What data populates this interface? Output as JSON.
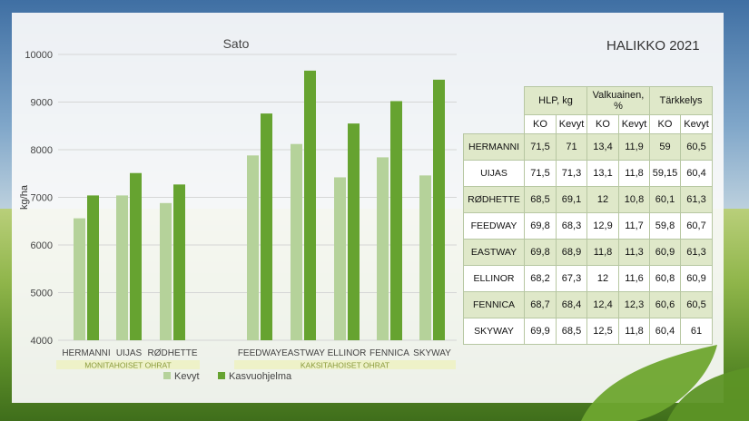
{
  "heading": "HALIKKO 2021",
  "chart_data": {
    "type": "bar",
    "title": "Sato",
    "ylabel": "kg/ha",
    "xlabel": "",
    "ylim": [
      4000,
      10000
    ],
    "yticks": [
      4000,
      5000,
      6000,
      7000,
      8000,
      9000,
      10000
    ],
    "grid": true,
    "legend_position": "bottom",
    "groups": [
      {
        "label": "MONITAHOISET OHRAT",
        "categories": [
          "HERMANNI",
          "UljAS",
          "RØDHETTE"
        ]
      },
      {
        "label": "KAKSITAHOISET OHRAT",
        "categories": [
          "FEEDWAY",
          "EASTWAY",
          "ELLINOR",
          "FENNICA",
          "SKYWAY"
        ]
      }
    ],
    "categories": [
      "HERMANNI",
      "UIJAS",
      "RØDHETTE",
      "FEEDWAY",
      "EASTWAY",
      "ELLINOR",
      "FENNICA",
      "SKYWAY"
    ],
    "series": [
      {
        "name": "Kevyt",
        "color": "#b5d29a",
        "values": [
          6560,
          7040,
          6880,
          7880,
          8120,
          7420,
          7840,
          7460
        ]
      },
      {
        "name": "Kasvuohjelma",
        "color": "#66a330",
        "values": [
          7040,
          7510,
          7270,
          8760,
          9660,
          8550,
          9020,
          9470
        ]
      }
    ]
  },
  "table": {
    "group_headers": [
      "HLP, kg",
      "Valkuainen, %",
      "Tärkkelys"
    ],
    "sub_headers": [
      "KO",
      "Kevyt",
      "KO",
      "Kevyt",
      "KO",
      "Kevyt"
    ],
    "rows": [
      {
        "name": "HERMANNI",
        "values": [
          "71,5",
          "71",
          "13,4",
          "11,9",
          "59",
          "60,5"
        ]
      },
      {
        "name": "UIJAS",
        "values": [
          "71,5",
          "71,3",
          "13,1",
          "11,8",
          "59,15",
          "60,4"
        ]
      },
      {
        "name": "RØDHETTE",
        "values": [
          "68,5",
          "69,1",
          "12",
          "10,8",
          "60,1",
          "61,3"
        ]
      },
      {
        "name": "FEEDWAY",
        "values": [
          "69,8",
          "68,3",
          "12,9",
          "11,7",
          "59,8",
          "60,7"
        ]
      },
      {
        "name": "EASTWAY",
        "values": [
          "69,8",
          "68,9",
          "11,8",
          "11,3",
          "60,9",
          "61,3"
        ]
      },
      {
        "name": "ELLINOR",
        "values": [
          "68,2",
          "67,3",
          "12",
          "11,6",
          "60,8",
          "60,9"
        ]
      },
      {
        "name": "FENNICA",
        "values": [
          "68,7",
          "68,4",
          "12,4",
          "12,3",
          "60,6",
          "60,5"
        ]
      },
      {
        "name": "SKYWAY",
        "values": [
          "69,9",
          "68,5",
          "12,5",
          "11,8",
          "60,4",
          "61"
        ]
      }
    ]
  }
}
